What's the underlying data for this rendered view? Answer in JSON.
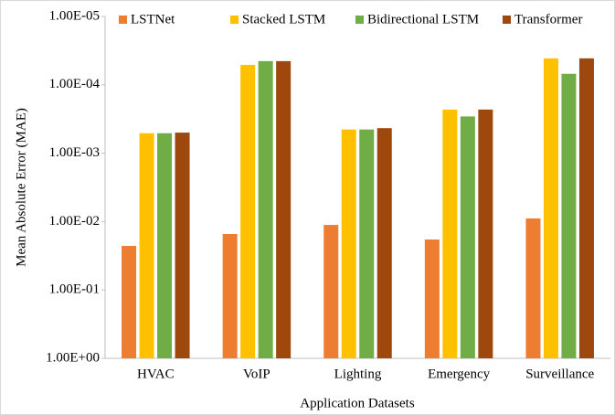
{
  "chart_data": {
    "type": "bar",
    "y_label": "Mean Absolute Error (MAE)",
    "x_label": "Application Datasets",
    "categories": [
      "HVAC",
      "VoIP",
      "Lighting",
      "Emergency",
      "Surveillance"
    ],
    "series": [
      {
        "name": "LSTNet",
        "color": "#ed7d31",
        "values": [
          0.0227,
          0.0152,
          0.0112,
          0.0183,
          0.009
        ]
      },
      {
        "name": "Stacked LSTM",
        "color": "#ffc000",
        "values": [
          0.00051,
          5.1e-05,
          0.00045,
          0.00023,
          4.1e-05
        ]
      },
      {
        "name": "Bidirectional LSTM",
        "color": "#70ad47",
        "values": [
          0.00051,
          4.5e-05,
          0.00045,
          0.00029,
          6.9e-05
        ]
      },
      {
        "name": "Transformer",
        "color": "#9e480e",
        "values": [
          0.0005,
          4.5e-05,
          0.00043,
          0.00023,
          4.1e-05
        ]
      }
    ],
    "yscale": "log",
    "ylim": [
      1,
      1e-05
    ],
    "yticks": [
      {
        "value": 1e-05,
        "label": "1.00E-05"
      },
      {
        "value": 0.0001,
        "label": "1.00E-04"
      },
      {
        "value": 0.001,
        "label": "1.00E-03"
      },
      {
        "value": 0.01,
        "label": "1.00E-02"
      },
      {
        "value": 0.1,
        "label": "1.00E-01"
      },
      {
        "value": 1,
        "label": "1.00E+00"
      }
    ],
    "grid": false,
    "legend": "top"
  }
}
